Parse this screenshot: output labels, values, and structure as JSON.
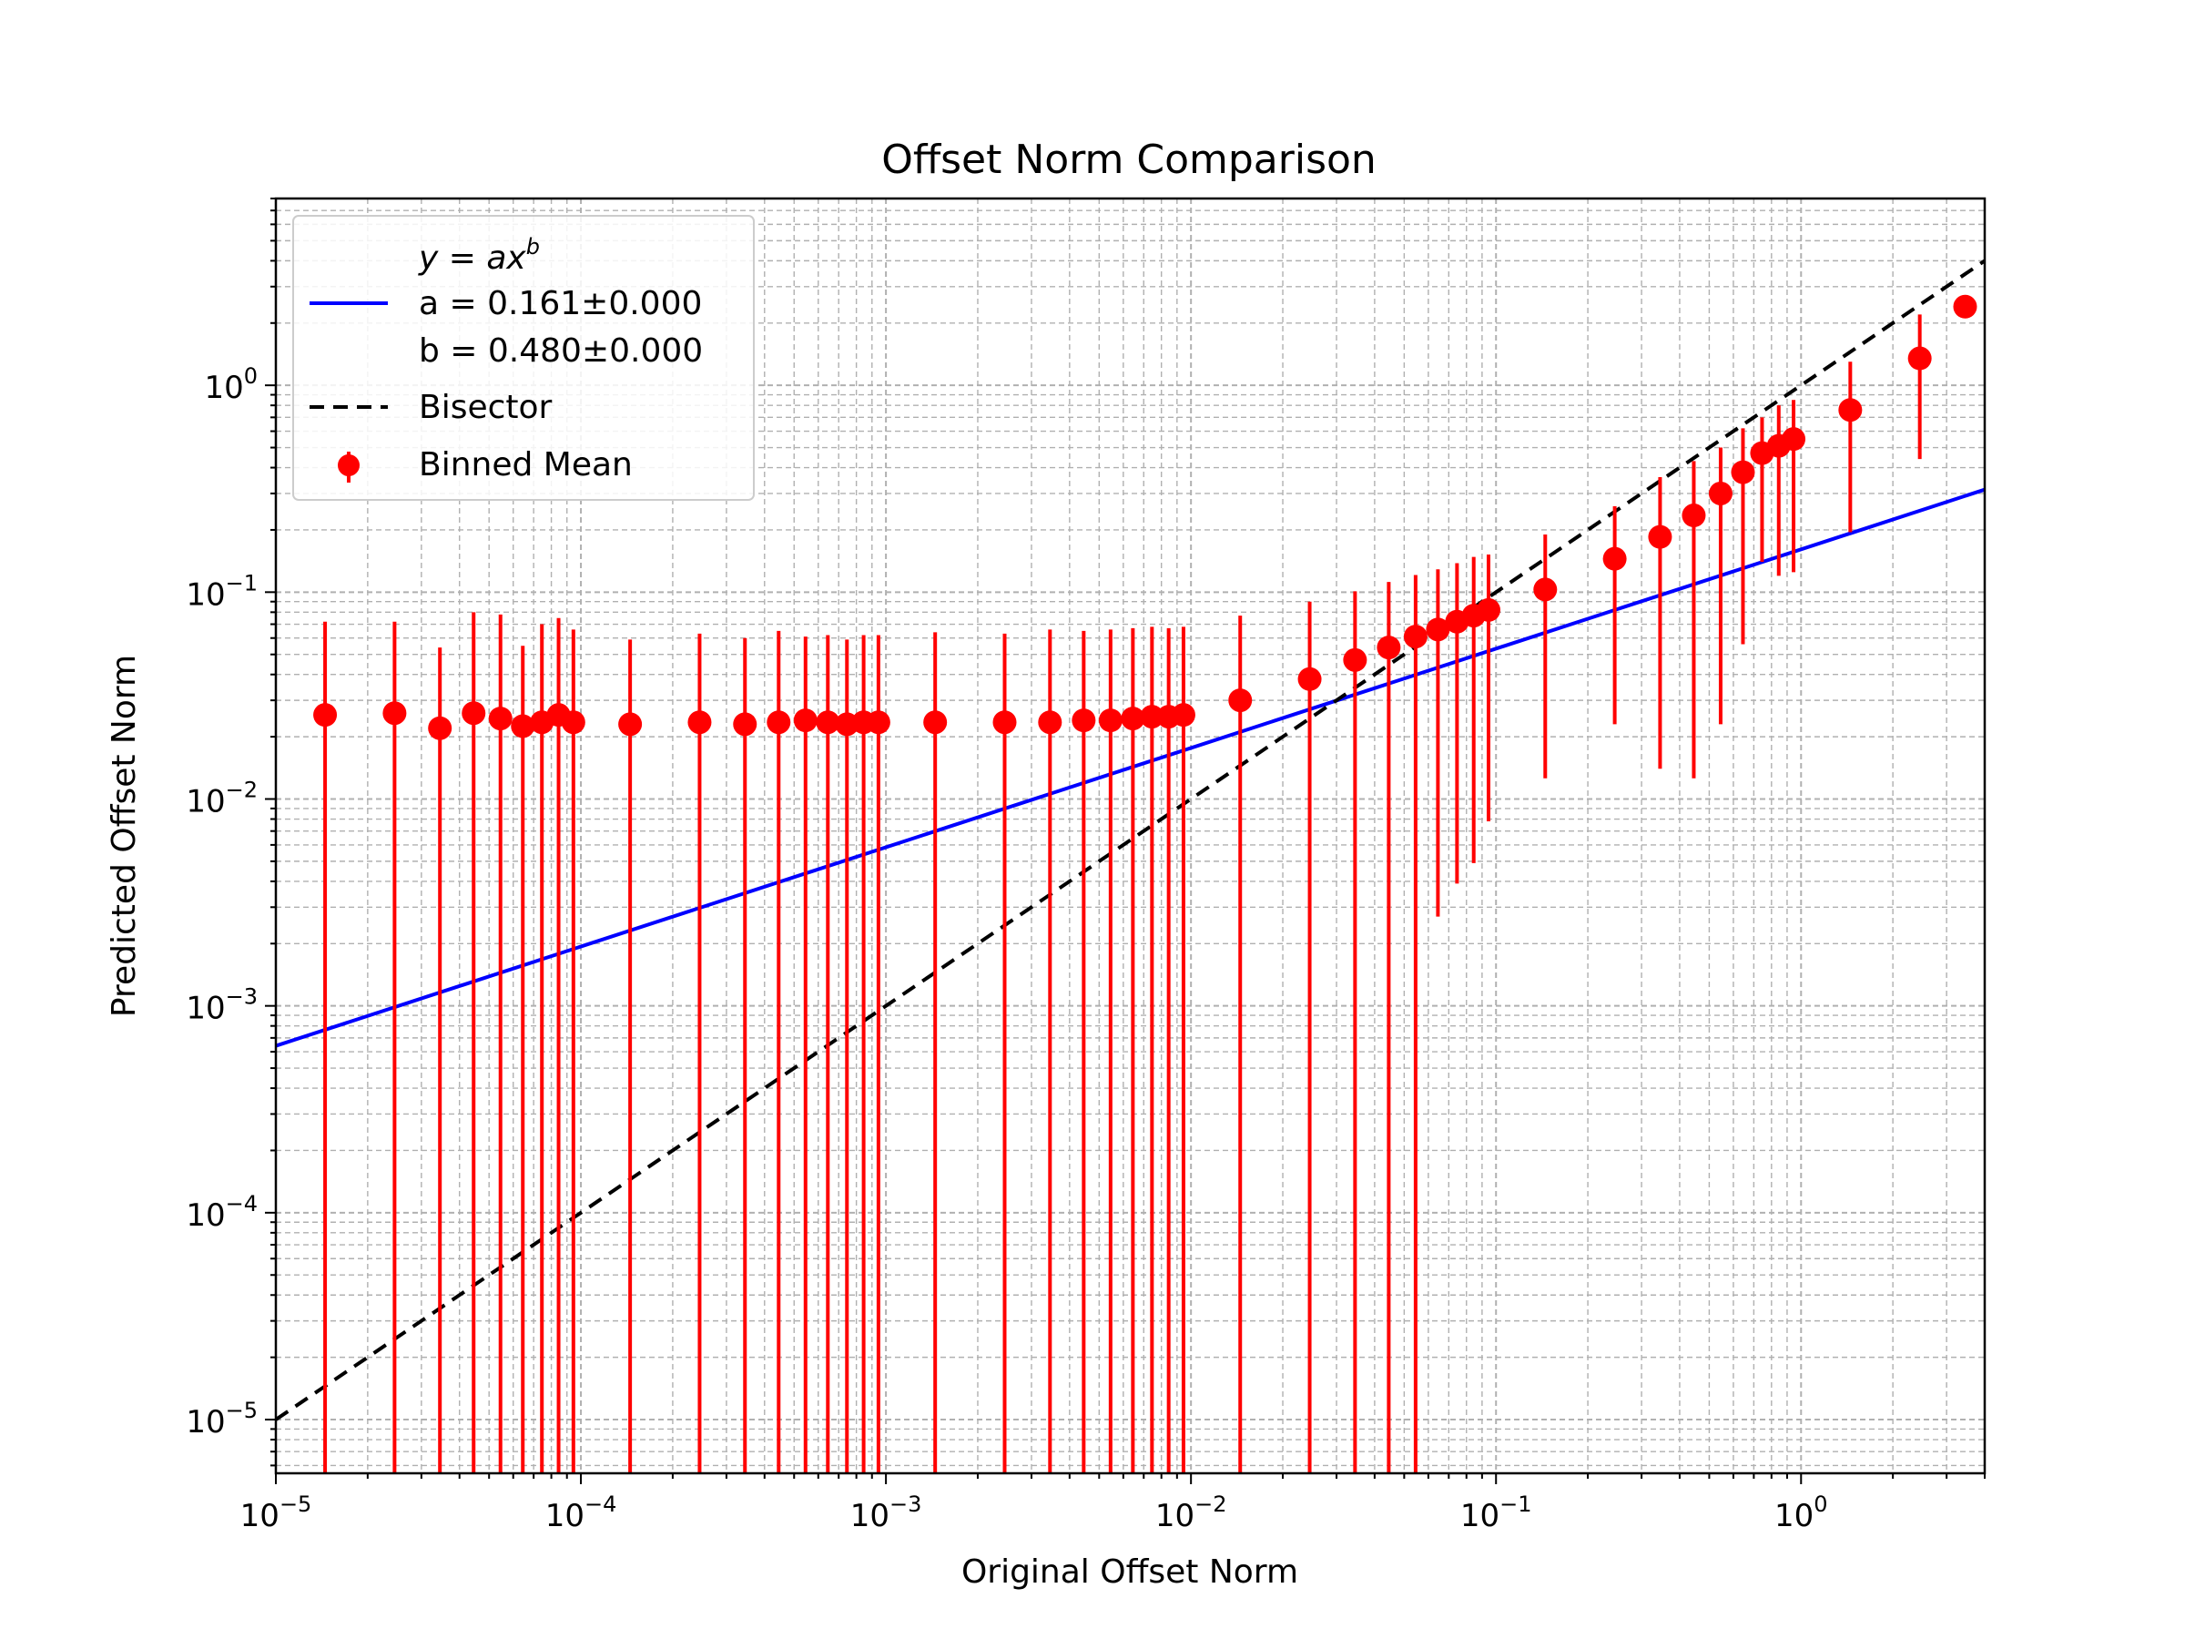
{
  "chart_data": {
    "type": "scatter",
    "title": "Offset Norm Comparison",
    "xlabel": "Original Offset Norm",
    "ylabel": "Predicted Offset Norm",
    "xscale": "log",
    "yscale": "log",
    "xlim": [
      1e-05,
      4.0
    ],
    "ylim": [
      5.5e-06,
      8.0
    ],
    "grid": true,
    "legend_position": "top-left",
    "xticks": [
      {
        "value": 1e-05,
        "base": "10",
        "exp": "−5"
      },
      {
        "value": 0.0001,
        "base": "10",
        "exp": "−4"
      },
      {
        "value": 0.001,
        "base": "10",
        "exp": "−3"
      },
      {
        "value": 0.01,
        "base": "10",
        "exp": "−2"
      },
      {
        "value": 0.1,
        "base": "10",
        "exp": "−1"
      },
      {
        "value": 1,
        "base": "10",
        "exp": "0"
      }
    ],
    "yticks": [
      {
        "value": 1e-05,
        "base": "10",
        "exp": "−5"
      },
      {
        "value": 0.0001,
        "base": "10",
        "exp": "−4"
      },
      {
        "value": 0.001,
        "base": "10",
        "exp": "−3"
      },
      {
        "value": 0.01,
        "base": "10",
        "exp": "−2"
      },
      {
        "value": 0.1,
        "base": "10",
        "exp": "−1"
      },
      {
        "value": 1,
        "base": "10",
        "exp": "0"
      }
    ],
    "legend": {
      "formula": "y = ax",
      "formula_sup": "b",
      "fit_a": "a = 0.161±0.000",
      "fit_b": "b = 0.480±0.000",
      "bisector": "Bisector",
      "binned": "Binned Mean"
    },
    "fit": {
      "a": 0.161,
      "b": 0.48,
      "color": "#0000ff"
    },
    "bisector_color": "#000000",
    "points_color": "#ff0000",
    "points": [
      {
        "x": 1.45e-05,
        "y": 0.0255,
        "lo": 5.5e-06,
        "hi": 0.072
      },
      {
        "x": 2.45e-05,
        "y": 0.026,
        "lo": 5.5e-06,
        "hi": 0.072
      },
      {
        "x": 3.45e-05,
        "y": 0.022,
        "lo": 5.5e-06,
        "hi": 0.054
      },
      {
        "x": 4.45e-05,
        "y": 0.026,
        "lo": 5.5e-06,
        "hi": 0.08
      },
      {
        "x": 5.45e-05,
        "y": 0.0245,
        "lo": 5.5e-06,
        "hi": 0.078
      },
      {
        "x": 6.45e-05,
        "y": 0.0225,
        "lo": 5.5e-06,
        "hi": 0.055
      },
      {
        "x": 7.45e-05,
        "y": 0.0235,
        "lo": 5.5e-06,
        "hi": 0.07
      },
      {
        "x": 8.45e-05,
        "y": 0.0255,
        "lo": 5.5e-06,
        "hi": 0.075
      },
      {
        "x": 9.45e-05,
        "y": 0.0235,
        "lo": 5.5e-06,
        "hi": 0.066
      },
      {
        "x": 0.000145,
        "y": 0.023,
        "lo": 5.5e-06,
        "hi": 0.059
      },
      {
        "x": 0.000245,
        "y": 0.0235,
        "lo": 5.5e-06,
        "hi": 0.063
      },
      {
        "x": 0.000345,
        "y": 0.023,
        "lo": 5.5e-06,
        "hi": 0.06
      },
      {
        "x": 0.000445,
        "y": 0.0235,
        "lo": 5.5e-06,
        "hi": 0.065
      },
      {
        "x": 0.000545,
        "y": 0.024,
        "lo": 5.5e-06,
        "hi": 0.061
      },
      {
        "x": 0.000645,
        "y": 0.0235,
        "lo": 5.5e-06,
        "hi": 0.062
      },
      {
        "x": 0.000745,
        "y": 0.023,
        "lo": 5.5e-06,
        "hi": 0.059
      },
      {
        "x": 0.000845,
        "y": 0.0235,
        "lo": 5.5e-06,
        "hi": 0.062
      },
      {
        "x": 0.000945,
        "y": 0.0235,
        "lo": 5.5e-06,
        "hi": 0.062
      },
      {
        "x": 0.00145,
        "y": 0.0235,
        "lo": 5.5e-06,
        "hi": 0.064
      },
      {
        "x": 0.00245,
        "y": 0.0235,
        "lo": 5.5e-06,
        "hi": 0.063
      },
      {
        "x": 0.00345,
        "y": 0.0235,
        "lo": 5.5e-06,
        "hi": 0.066
      },
      {
        "x": 0.00445,
        "y": 0.024,
        "lo": 5.5e-06,
        "hi": 0.065
      },
      {
        "x": 0.00545,
        "y": 0.024,
        "lo": 5.5e-06,
        "hi": 0.066
      },
      {
        "x": 0.00645,
        "y": 0.0245,
        "lo": 5.5e-06,
        "hi": 0.067
      },
      {
        "x": 0.00745,
        "y": 0.025,
        "lo": 5.5e-06,
        "hi": 0.068
      },
      {
        "x": 0.00845,
        "y": 0.025,
        "lo": 5.5e-06,
        "hi": 0.067
      },
      {
        "x": 0.00945,
        "y": 0.0255,
        "lo": 5.5e-06,
        "hi": 0.068
      },
      {
        "x": 0.0145,
        "y": 0.03,
        "lo": 5.5e-06,
        "hi": 0.077
      },
      {
        "x": 0.0245,
        "y": 0.038,
        "lo": 5.5e-06,
        "hi": 0.09
      },
      {
        "x": 0.0345,
        "y": 0.047,
        "lo": 5.5e-06,
        "hi": 0.101
      },
      {
        "x": 0.0445,
        "y": 0.054,
        "lo": 5.5e-06,
        "hi": 0.112
      },
      {
        "x": 0.0545,
        "y": 0.061,
        "lo": 5.5e-06,
        "hi": 0.121
      },
      {
        "x": 0.0645,
        "y": 0.066,
        "lo": 0.0027,
        "hi": 0.129
      },
      {
        "x": 0.0745,
        "y": 0.072,
        "lo": 0.0039,
        "hi": 0.138
      },
      {
        "x": 0.0845,
        "y": 0.077,
        "lo": 0.0049,
        "hi": 0.148
      },
      {
        "x": 0.0945,
        "y": 0.082,
        "lo": 0.0078,
        "hi": 0.152
      },
      {
        "x": 0.145,
        "y": 0.103,
        "lo": 0.0126,
        "hi": 0.19
      },
      {
        "x": 0.245,
        "y": 0.145,
        "lo": 0.023,
        "hi": 0.26
      },
      {
        "x": 0.345,
        "y": 0.185,
        "lo": 0.014,
        "hi": 0.36
      },
      {
        "x": 0.445,
        "y": 0.235,
        "lo": 0.0126,
        "hi": 0.43
      },
      {
        "x": 0.545,
        "y": 0.3,
        "lo": 0.023,
        "hi": 0.5
      },
      {
        "x": 0.645,
        "y": 0.38,
        "lo": 0.056,
        "hi": 0.62
      },
      {
        "x": 0.745,
        "y": 0.47,
        "lo": 0.14,
        "hi": 0.7
      },
      {
        "x": 0.845,
        "y": 0.51,
        "lo": 0.12,
        "hi": 0.8
      },
      {
        "x": 0.945,
        "y": 0.55,
        "lo": 0.125,
        "hi": 0.85
      },
      {
        "x": 1.45,
        "y": 0.76,
        "lo": 0.195,
        "hi": 1.3
      },
      {
        "x": 2.45,
        "y": 1.35,
        "lo": 0.44,
        "hi": 2.2
      },
      {
        "x": 3.45,
        "y": 2.4,
        "lo": 2.4,
        "hi": 2.4
      }
    ]
  }
}
